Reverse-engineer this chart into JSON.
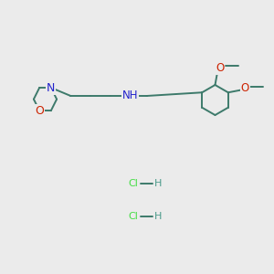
{
  "bg_color": "#ebebeb",
  "bond_color": "#3d7a6b",
  "N_color": "#2222cc",
  "O_color": "#cc2200",
  "Cl_color": "#44dd44",
  "H_color": "#4a9a8a",
  "bond_width": 1.4,
  "font_size": 8.5,
  "figsize": [
    3.0,
    3.0
  ],
  "dpi": 100,
  "xlim": [
    0,
    10
  ],
  "ylim": [
    0,
    10
  ]
}
